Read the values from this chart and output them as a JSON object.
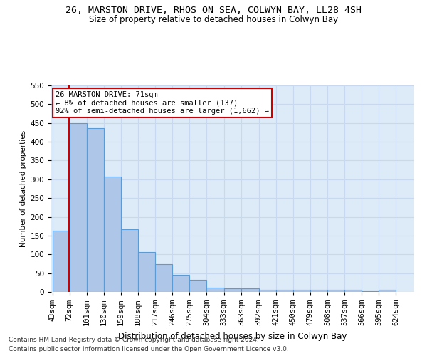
{
  "title1": "26, MARSTON DRIVE, RHOS ON SEA, COLWYN BAY, LL28 4SH",
  "title2": "Size of property relative to detached houses in Colwyn Bay",
  "xlabel": "Distribution of detached houses by size in Colwyn Bay",
  "ylabel": "Number of detached properties",
  "footnote1": "Contains HM Land Registry data © Crown copyright and database right 2024.",
  "footnote2": "Contains public sector information licensed under the Open Government Licence v3.0.",
  "annotation_line1": "26 MARSTON DRIVE: 71sqm",
  "annotation_line2": "← 8% of detached houses are smaller (137)",
  "annotation_line3": "92% of semi-detached houses are larger (1,662) →",
  "property_size": 71,
  "bar_edges": [
    43,
    72,
    101,
    130,
    159,
    188,
    217,
    246,
    275,
    304,
    333,
    363,
    392,
    421,
    450,
    479,
    508,
    537,
    566,
    595,
    624
  ],
  "bar_heights": [
    163,
    450,
    436,
    307,
    167,
    106,
    74,
    45,
    33,
    11,
    10,
    9,
    5,
    5,
    5,
    5,
    5,
    5,
    1,
    5
  ],
  "bar_color": "#aec6e8",
  "bar_edge_color": "#5b9bd5",
  "vline_color": "#cc0000",
  "grid_color": "#c8d8ee",
  "background_color": "#ddeaf8",
  "ylim": [
    0,
    550
  ],
  "yticks": [
    0,
    50,
    100,
    150,
    200,
    250,
    300,
    350,
    400,
    450,
    500,
    550
  ],
  "annotation_box_color": "#cc0000",
  "title1_fontsize": 9.5,
  "title2_fontsize": 8.5,
  "xlabel_fontsize": 8.5,
  "ylabel_fontsize": 7.5,
  "tick_fontsize": 7.5,
  "annot_fontsize": 7.5,
  "footnote_fontsize": 6.5
}
